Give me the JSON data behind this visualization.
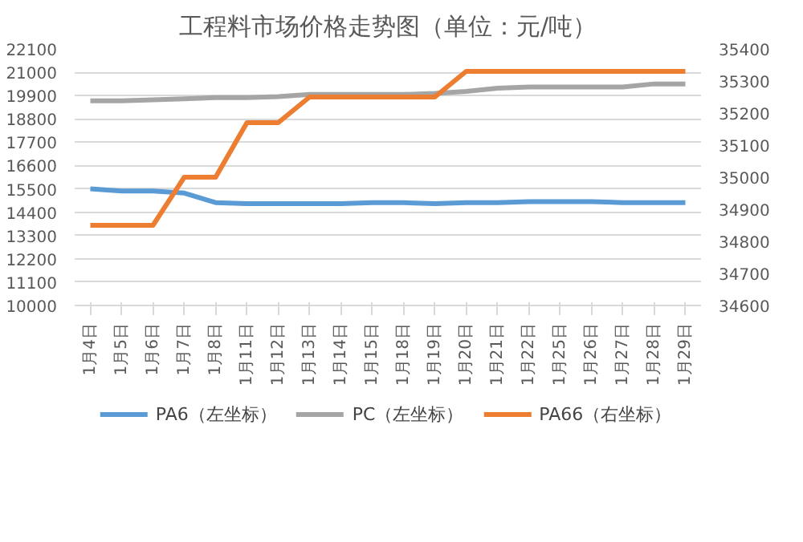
{
  "chart_data": {
    "type": "line",
    "title": "工程料市场价格走势图（单位：元/吨）",
    "categories": [
      "1月4日",
      "1月5日",
      "1月6日",
      "1月7日",
      "1月8日",
      "1月11日",
      "1月12日",
      "1月13日",
      "1月14日",
      "1月15日",
      "1月18日",
      "1月19日",
      "1月20日",
      "1月21日",
      "1月22日",
      "1月25日",
      "1月26日",
      "1月27日",
      "1月28日",
      "1月29日"
    ],
    "series": [
      {
        "name": "PA6（左坐标）",
        "color": "#5b9bd5",
        "values": [
          15500,
          15400,
          15400,
          15300,
          14850,
          14800,
          14800,
          14800,
          14800,
          14850,
          14850,
          14800,
          14850,
          14850,
          14900,
          14900,
          14900,
          14850,
          14850,
          14850
        ]
      },
      {
        "name": "PC（左坐标）",
        "color": "#a5a5a5",
        "values": [
          19650,
          19650,
          19700,
          19750,
          19800,
          19800,
          19850,
          19950,
          19950,
          19950,
          19950,
          20000,
          20100,
          20250,
          20300,
          20300,
          20300,
          20300,
          20450,
          20450
        ]
      },
      {
        "name": "PA66（右坐标）",
        "color": "#ed7d31",
        "axis": "y2",
        "values": [
          34850,
          34850,
          34850,
          35000,
          35000,
          35170,
          35170,
          35250,
          35250,
          35250,
          35250,
          35250,
          35330,
          35330,
          35330,
          35330,
          35330,
          35330,
          35330,
          35330
        ]
      }
    ],
    "ylim": [
      10000,
      22100
    ],
    "yticks": [
      10000,
      11100,
      12200,
      13300,
      14400,
      15500,
      16600,
      17700,
      18800,
      19900,
      21000,
      22100
    ],
    "y2lim": [
      34600,
      35400
    ],
    "y2ticks": [
      34600,
      34700,
      34800,
      34900,
      35000,
      35100,
      35200,
      35300,
      35400
    ],
    "grid": "y",
    "legend": "bottom"
  }
}
